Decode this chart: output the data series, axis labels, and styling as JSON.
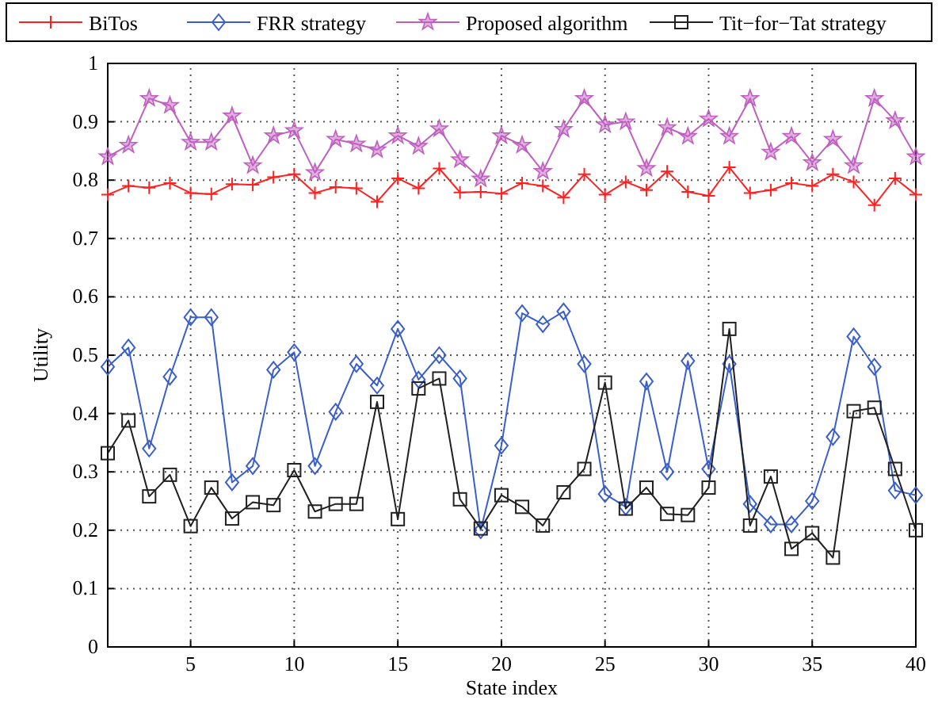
{
  "chart_data": {
    "type": "line",
    "xlabel": "State index",
    "ylabel": "Utility",
    "x": [
      1,
      2,
      3,
      4,
      5,
      6,
      7,
      8,
      9,
      10,
      11,
      12,
      13,
      14,
      15,
      16,
      17,
      18,
      19,
      20,
      21,
      22,
      23,
      24,
      25,
      26,
      27,
      28,
      29,
      30,
      31,
      32,
      33,
      34,
      35,
      36,
      37,
      38,
      39,
      40
    ],
    "xlim": [
      1,
      40
    ],
    "xticks": [
      5,
      10,
      15,
      20,
      25,
      30,
      35,
      40
    ],
    "ylim": [
      0,
      1
    ],
    "yticks": [
      0,
      0.1,
      0.2,
      0.3,
      0.4,
      0.5,
      0.6,
      0.7,
      0.8,
      0.9,
      1
    ],
    "grid": true,
    "legend": "top",
    "line_style": "solid",
    "series": [
      {
        "name": "BiTos",
        "color": "#ff2020",
        "marker": "cross",
        "values": [
          0.775,
          0.79,
          0.787,
          0.795,
          0.778,
          0.776,
          0.793,
          0.792,
          0.805,
          0.81,
          0.778,
          0.788,
          0.786,
          0.763,
          0.803,
          0.786,
          0.82,
          0.779,
          0.78,
          0.777,
          0.795,
          0.79,
          0.77,
          0.81,
          0.775,
          0.797,
          0.783,
          0.815,
          0.78,
          0.773,
          0.822,
          0.778,
          0.783,
          0.795,
          0.79,
          0.81,
          0.797,
          0.757,
          0.803,
          0.775
        ]
      },
      {
        "name": "FRR strategy",
        "color": "#3a5fcd",
        "marker": "diamond",
        "values": [
          0.48,
          0.513,
          0.34,
          0.463,
          0.565,
          0.565,
          0.282,
          0.31,
          0.475,
          0.505,
          0.31,
          0.403,
          0.485,
          0.448,
          0.545,
          0.458,
          0.5,
          0.46,
          0.2,
          0.345,
          0.572,
          0.553,
          0.575,
          0.485,
          0.262,
          0.24,
          0.455,
          0.3,
          0.49,
          0.305,
          0.485,
          0.245,
          0.21,
          0.21,
          0.25,
          0.36,
          0.532,
          0.48,
          0.268,
          0.26
        ]
      },
      {
        "name": "Proposed algorithm",
        "color": "#bf5fbf",
        "marker": "star",
        "values": [
          0.84,
          0.86,
          0.94,
          0.928,
          0.865,
          0.865,
          0.91,
          0.825,
          0.876,
          0.885,
          0.813,
          0.87,
          0.862,
          0.852,
          0.876,
          0.858,
          0.888,
          0.835,
          0.802,
          0.876,
          0.86,
          0.815,
          0.887,
          0.94,
          0.895,
          0.9,
          0.82,
          0.89,
          0.875,
          0.905,
          0.875,
          0.94,
          0.848,
          0.875,
          0.83,
          0.87,
          0.825,
          0.94,
          0.902,
          0.84
        ]
      },
      {
        "name": "Tit−for−Tat strategy",
        "color": "#202020",
        "marker": "square",
        "values": [
          0.332,
          0.388,
          0.258,
          0.295,
          0.207,
          0.273,
          0.22,
          0.248,
          0.243,
          0.303,
          0.232,
          0.245,
          0.245,
          0.42,
          0.219,
          0.443,
          0.46,
          0.253,
          0.203,
          0.26,
          0.24,
          0.208,
          0.265,
          0.305,
          0.453,
          0.237,
          0.273,
          0.228,
          0.226,
          0.273,
          0.545,
          0.208,
          0.292,
          0.168,
          0.195,
          0.153,
          0.404,
          0.41,
          0.305,
          0.2
        ]
      }
    ]
  }
}
